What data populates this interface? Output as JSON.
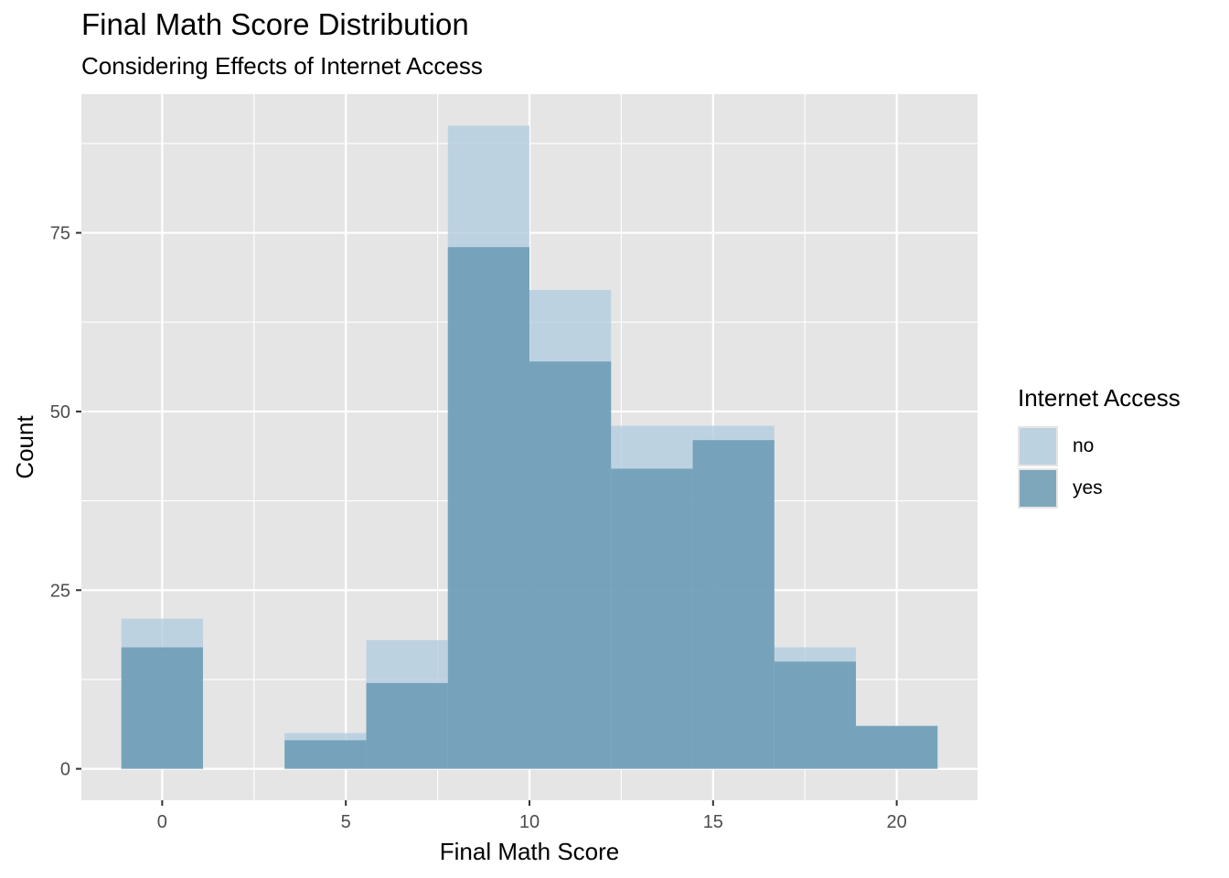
{
  "chart_data": {
    "type": "bar",
    "title": "Final Math Score Distribution",
    "subtitle": "Considering Effects of Internet Access",
    "xlabel": "Final Math Score",
    "ylabel": "Count",
    "xlim": [
      -2.2,
      22.2
    ],
    "ylim": [
      -4.4,
      94.4
    ],
    "x_ticks": [
      0,
      5,
      10,
      15,
      20
    ],
    "y_ticks": [
      0,
      25,
      50,
      75
    ],
    "bin_width": 2.222,
    "bin_centers": [
      0,
      2.222,
      4.444,
      6.667,
      8.889,
      11.111,
      13.333,
      15.556,
      17.778,
      20
    ],
    "series": [
      {
        "name": "no",
        "color": "#b3cde0",
        "values": [
          21,
          0,
          5,
          18,
          90,
          67,
          48,
          48,
          17,
          6
        ]
      },
      {
        "name": "yes",
        "color": "#6497b1",
        "values": [
          17,
          0,
          4,
          12,
          73,
          57,
          42,
          46,
          15,
          6
        ]
      }
    ],
    "grid": true,
    "legend": {
      "title": "Internet Access",
      "position": "right"
    }
  }
}
